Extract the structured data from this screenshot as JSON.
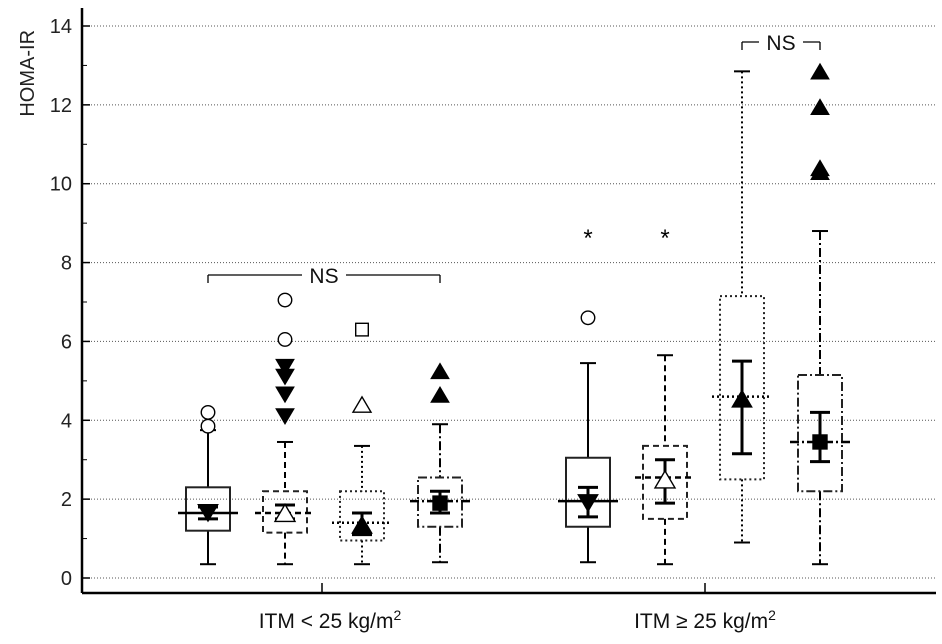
{
  "chart_data": {
    "type": "box",
    "ylabel": "HOMA-IR",
    "ylim": [
      0,
      14
    ],
    "yticks": [
      "0",
      "2",
      "4",
      "6",
      "8",
      "10",
      "12",
      "14"
    ],
    "grid": true,
    "groups": [
      {
        "label": "ITM < 25 kg/m",
        "label_sup": "2",
        "significance": "NS",
        "boxes": [
          {
            "q1": 1.2,
            "median": 1.65,
            "q3": 2.3,
            "whisker_low": 0.35,
            "whisker_high": 3.75,
            "mean": 1.65,
            "ci_low": 1.5,
            "ci_high": 1.8,
            "marker": "triangle-down",
            "outliers": [
              {
                "y": 4.2,
                "symbol": "circle-open"
              },
              {
                "y": 3.85,
                "symbol": "circle-open"
              }
            ]
          },
          {
            "q1": 1.15,
            "median": 1.65,
            "q3": 2.2,
            "whisker_low": 0.35,
            "whisker_high": 3.45,
            "mean": 1.65,
            "ci_low": 1.5,
            "ci_high": 1.85,
            "marker": "triangle-up-open",
            "outliers": [
              {
                "y": 7.05,
                "symbol": "circle-open"
              },
              {
                "y": 6.05,
                "symbol": "circle-open"
              },
              {
                "y": 5.35,
                "symbol": "triangle-down"
              },
              {
                "y": 5.1,
                "symbol": "triangle-down"
              },
              {
                "y": 4.65,
                "symbol": "triangle-down"
              },
              {
                "y": 4.1,
                "symbol": "triangle-down"
              }
            ]
          },
          {
            "q1": 0.95,
            "median": 1.4,
            "q3": 2.2,
            "whisker_low": 0.35,
            "whisker_high": 3.35,
            "mean": 1.35,
            "ci_low": 1.1,
            "ci_high": 1.65,
            "marker": "triangle-up",
            "outliers": [
              {
                "y": 6.3,
                "symbol": "square-open"
              },
              {
                "y": 4.4,
                "symbol": "triangle-up-open"
              }
            ]
          },
          {
            "q1": 1.3,
            "median": 1.95,
            "q3": 2.55,
            "whisker_low": 0.4,
            "whisker_high": 3.9,
            "mean": 1.9,
            "ci_low": 1.65,
            "ci_high": 2.2,
            "marker": "square",
            "outliers": [
              {
                "y": 5.25,
                "symbol": "triangle-up"
              },
              {
                "y": 4.65,
                "symbol": "triangle-up"
              }
            ]
          }
        ]
      },
      {
        "label": "ITM ≥ 25 kg/m",
        "label_sup": "2",
        "significance": "NS",
        "boxes": [
          {
            "q1": 1.3,
            "median": 1.95,
            "q3": 3.05,
            "whisker_low": 0.4,
            "whisker_high": 5.45,
            "mean": 1.9,
            "ci_low": 1.55,
            "ci_high": 2.3,
            "marker": "triangle-down",
            "outliers": [
              {
                "y": 8.7,
                "symbol": "asterisk"
              },
              {
                "y": 6.6,
                "symbol": "circle-open"
              }
            ]
          },
          {
            "q1": 1.5,
            "median": 2.55,
            "q3": 3.35,
            "whisker_low": 0.35,
            "whisker_high": 5.65,
            "mean": 2.5,
            "ci_low": 1.9,
            "ci_high": 3.0,
            "marker": "triangle-up-open",
            "outliers": [
              {
                "y": 8.7,
                "symbol": "asterisk"
              }
            ]
          },
          {
            "q1": 2.5,
            "median": 4.6,
            "q3": 7.15,
            "whisker_low": 0.9,
            "whisker_high": 12.85,
            "mean": 4.55,
            "ci_low": 3.15,
            "ci_high": 5.5,
            "marker": "triangle-up",
            "outliers": []
          },
          {
            "q1": 2.2,
            "median": 3.45,
            "q3": 5.15,
            "whisker_low": 0.35,
            "whisker_high": 8.8,
            "mean": 3.45,
            "ci_low": 2.95,
            "ci_high": 4.2,
            "marker": "square",
            "outliers": [
              {
                "y": 12.85,
                "symbol": "triangle-up"
              },
              {
                "y": 11.95,
                "symbol": "triangle-up"
              },
              {
                "y": 10.4,
                "symbol": "triangle-up"
              },
              {
                "y": 10.3,
                "symbol": "triangle-up"
              }
            ]
          }
        ]
      }
    ]
  }
}
